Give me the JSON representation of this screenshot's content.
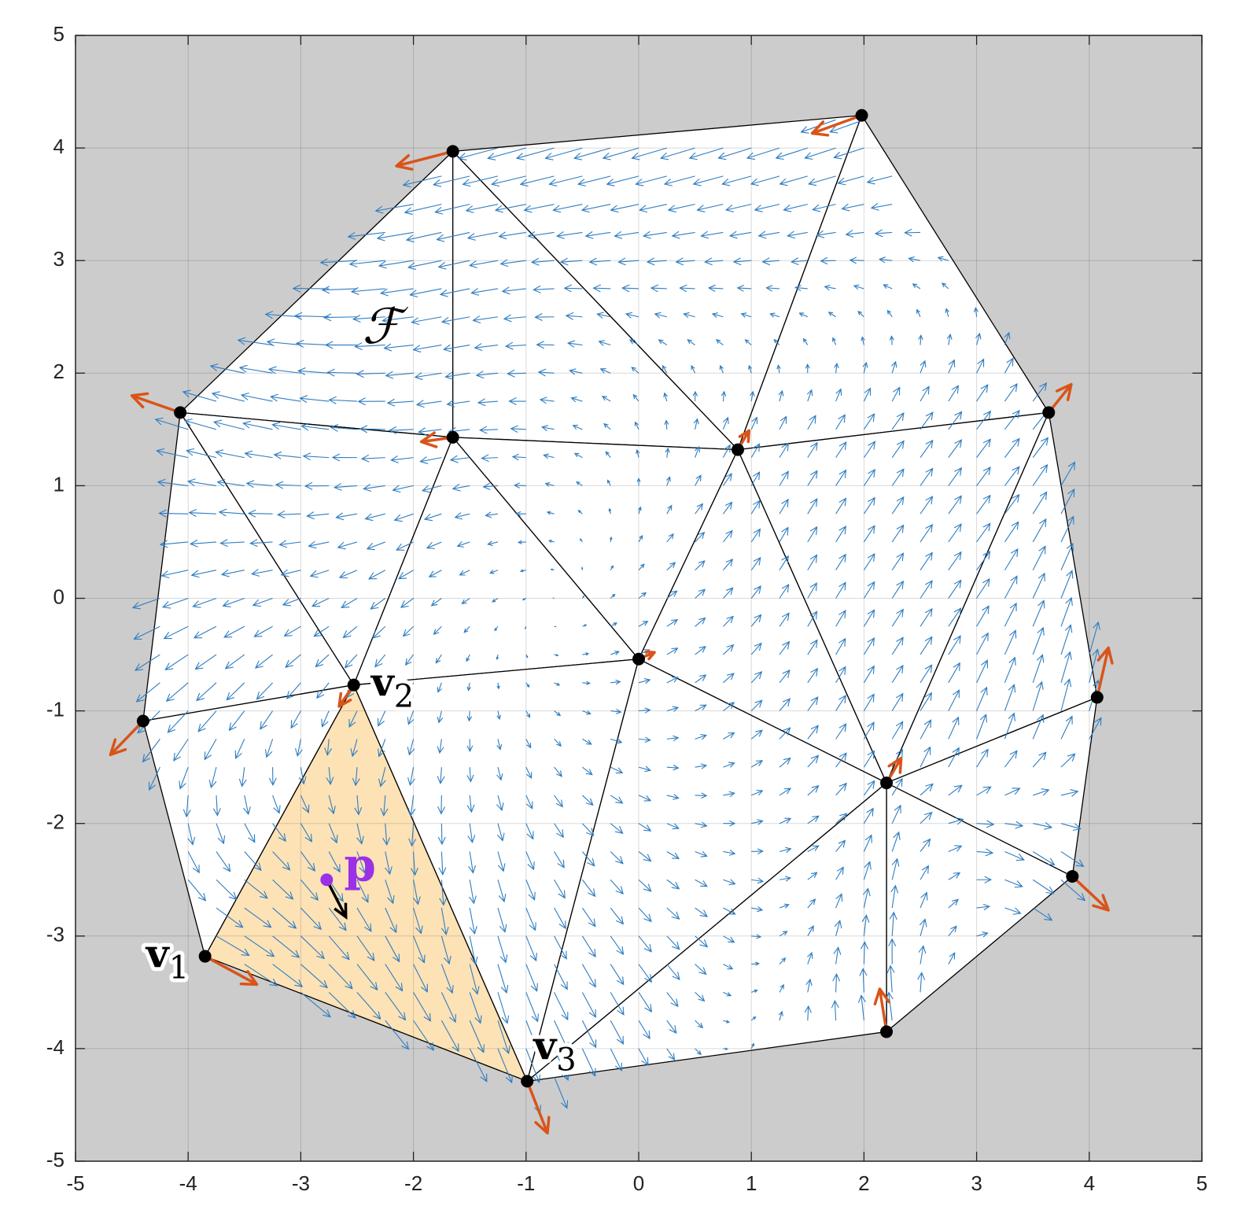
{
  "chart_data": {
    "type": "mesh",
    "xlim": [
      -5,
      5
    ],
    "ylim": [
      -5,
      5
    ],
    "xticks": [
      -5,
      -4,
      -3,
      -2,
      -1,
      0,
      1,
      2,
      3,
      4,
      5
    ],
    "yticks": [
      -5,
      -4,
      -3,
      -2,
      -1,
      0,
      1,
      2,
      3,
      4,
      5
    ],
    "grid": true,
    "background_color": "#cccccc",
    "mesh_color": "#ffffff",
    "edge_color": "#000000",
    "field_color": "#2f7dc0",
    "vertex_vector_color": "#d9541a",
    "highlight_color": "#fde2b6",
    "point_color": "#9b30e6",
    "vertices": {
      "x": [
        -1.65,
        1.98,
        -4.07,
        -1.65,
        0.88,
        3.64,
        -2.53,
        0.0,
        -4.4,
        4.07,
        2.2,
        3.85,
        -3.85,
        2.2,
        -0.99
      ],
      "y": [
        3.97,
        4.29,
        1.65,
        1.43,
        1.32,
        1.65,
        -0.77,
        -0.54,
        -1.09,
        -0.88,
        -1.64,
        -2.47,
        -3.18,
        -3.85,
        -4.29
      ]
    },
    "vertex_vectors": {
      "u": [
        -0.5,
        -0.44,
        -0.43,
        -0.28,
        0.1,
        0.2,
        -0.13,
        0.14,
        -0.29,
        0.1,
        0.13,
        0.32,
        0.46,
        -0.06,
        0.18
      ],
      "v": [
        -0.13,
        -0.16,
        0.15,
        -0.04,
        0.17,
        0.25,
        -0.19,
        0.06,
        -0.3,
        0.44,
        0.22,
        -0.3,
        -0.25,
        0.38,
        -0.46
      ]
    },
    "triangles": [
      [
        0,
        1,
        4
      ],
      [
        0,
        2,
        3
      ],
      [
        0,
        3,
        4
      ],
      [
        1,
        4,
        5
      ],
      [
        2,
        3,
        6
      ],
      [
        2,
        6,
        8
      ],
      [
        3,
        6,
        7
      ],
      [
        3,
        4,
        7
      ],
      [
        4,
        7,
        10
      ],
      [
        4,
        5,
        10
      ],
      [
        5,
        10,
        9
      ],
      [
        6,
        8,
        12
      ],
      [
        6,
        12,
        14
      ],
      [
        6,
        7,
        14
      ],
      [
        7,
        14,
        10
      ],
      [
        10,
        9,
        11
      ],
      [
        10,
        11,
        13
      ],
      [
        10,
        13,
        14
      ]
    ],
    "highlighted_triangle": 12,
    "point": {
      "x": -2.77,
      "y": -2.5,
      "u": 0.17,
      "v": -0.33,
      "label": "p"
    },
    "field_label": "ℱ",
    "vertex_labels": [
      {
        "vertex": 12,
        "text": "v",
        "sub": "1"
      },
      {
        "vertex": 6,
        "text": "v",
        "sub": "2"
      },
      {
        "vertex": 14,
        "text": "v",
        "sub": "3"
      }
    ]
  }
}
